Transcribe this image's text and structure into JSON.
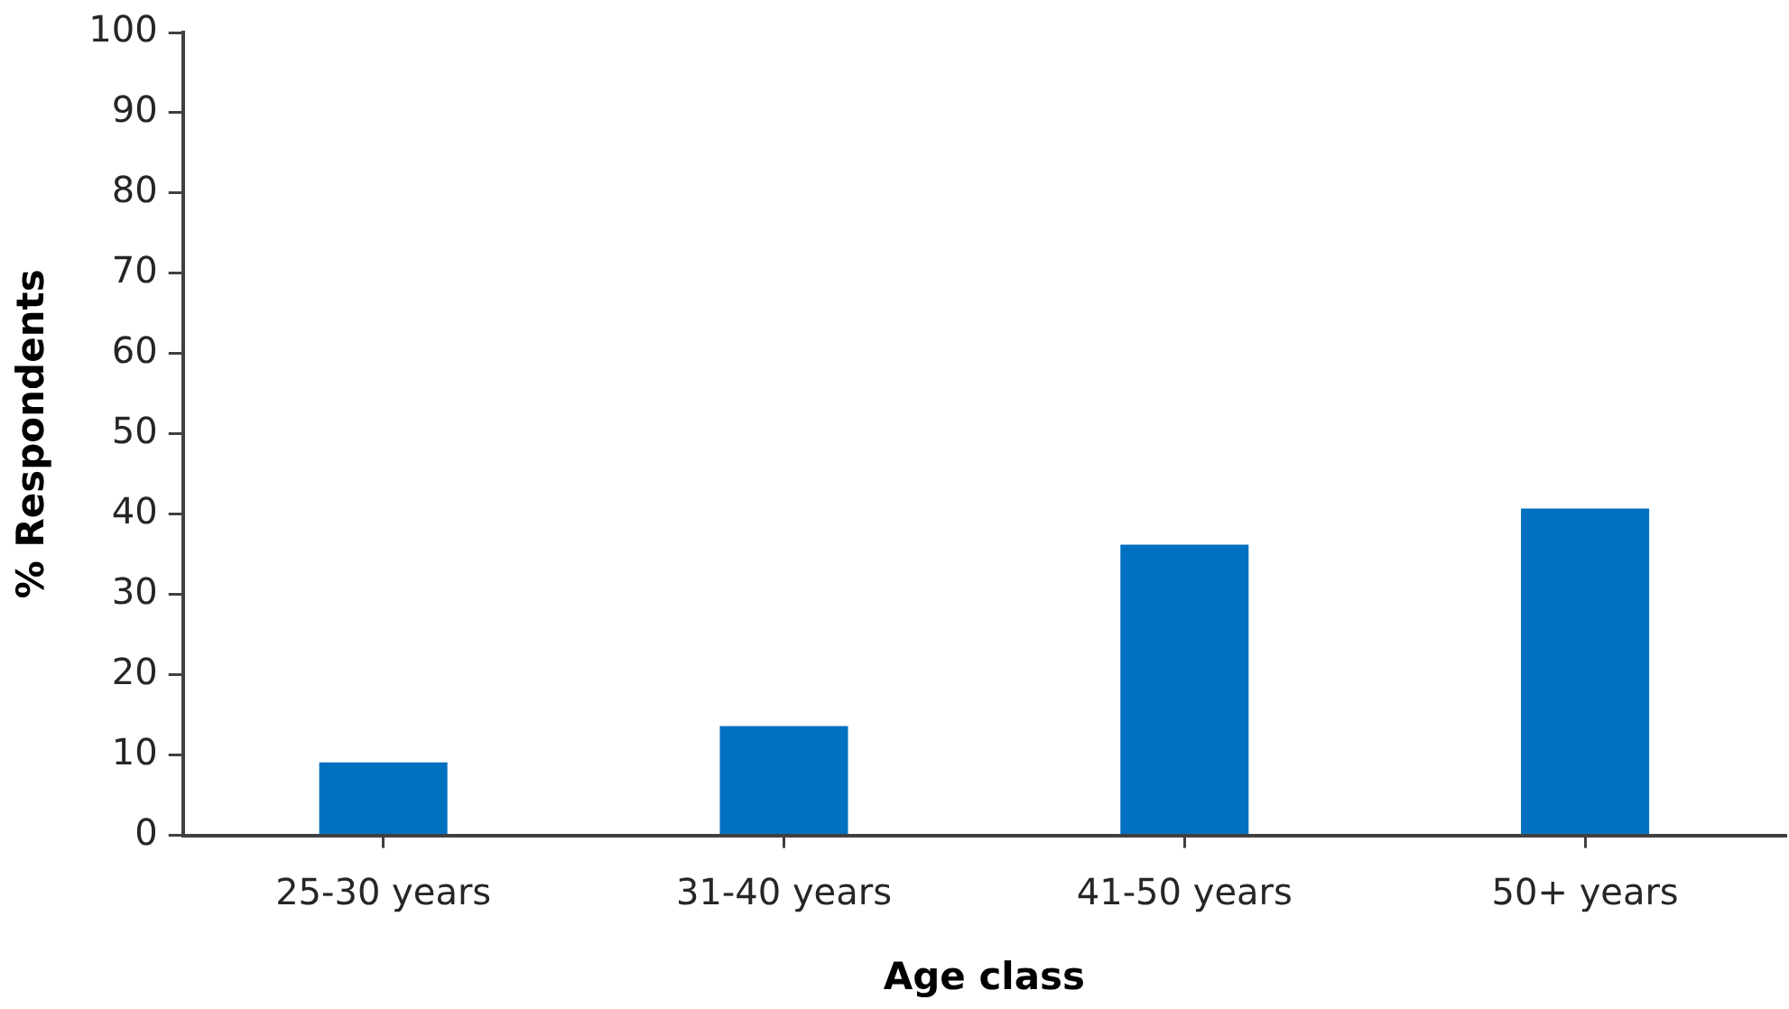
{
  "chart_data": {
    "type": "bar",
    "xlabel": "Age class",
    "ylabel": "% Respondents",
    "categories": [
      "25-30 years",
      "31-40 years",
      "41-50 years",
      "50+ years"
    ],
    "values": [
      9.1,
      13.6,
      36.2,
      40.7
    ],
    "color": "#0070c0",
    "ylim": [
      0,
      100
    ],
    "yticks": [
      0,
      10,
      20,
      30,
      40,
      50,
      60,
      70,
      80,
      90,
      100
    ]
  }
}
